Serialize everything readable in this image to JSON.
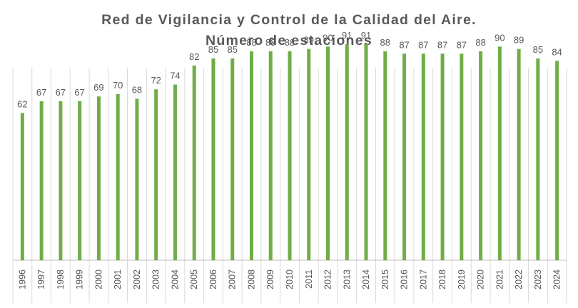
{
  "chart_data": {
    "type": "bar",
    "title": "Red de Vigilancia y Control de la Calidad del Aire.",
    "subtitle": "Número de estaciones",
    "categories": [
      "1996",
      "1997",
      "1998",
      "1999",
      "2000",
      "2001",
      "2002",
      "2003",
      "2004",
      "2005",
      "2006",
      "2007",
      "2008",
      "2009",
      "2010",
      "2011",
      "2012",
      "2013",
      "2014",
      "2015",
      "2016",
      "2017",
      "2018",
      "2019",
      "2020",
      "2021",
      "2022",
      "2023",
      "2024"
    ],
    "values": [
      62,
      67,
      67,
      67,
      69,
      70,
      68,
      72,
      74,
      82,
      85,
      85,
      88,
      88,
      88,
      89,
      90,
      91,
      91,
      88,
      87,
      87,
      87,
      87,
      88,
      90,
      89,
      85,
      84
    ],
    "xlabel": "",
    "ylabel": "",
    "ylim": [
      0,
      100
    ],
    "bar_color": "#70ad47",
    "grid": "vertical",
    "data_labels": true
  }
}
